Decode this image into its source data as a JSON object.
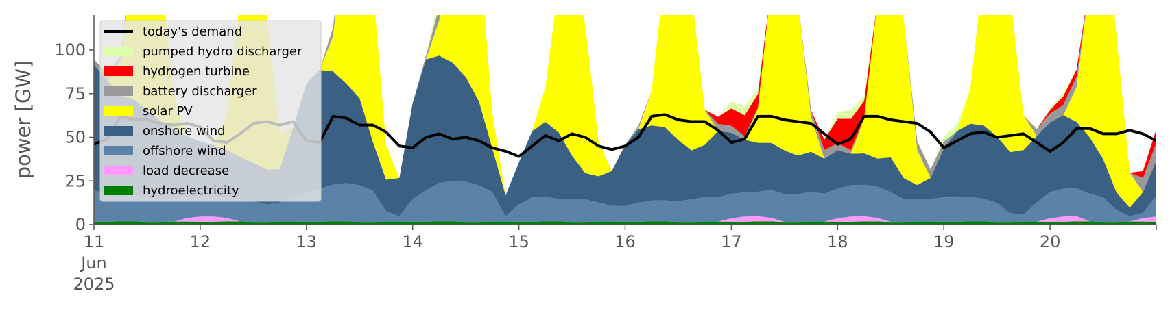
{
  "chart_data": {
    "type": "area",
    "title": "",
    "xlabel": "",
    "ylabel": "power [GW]",
    "ylim": [
      0,
      120
    ],
    "xlim": [
      "2025-06-11T00:00",
      "2025-06-21T00:00"
    ],
    "yticks": [
      "0",
      "25",
      "50",
      "75",
      "100"
    ],
    "xticks": [
      {
        "lines": [
          "11",
          "Jun",
          "2025"
        ]
      },
      {
        "lines": [
          "12"
        ]
      },
      {
        "lines": [
          "13"
        ]
      },
      {
        "lines": [
          "14"
        ]
      },
      {
        "lines": [
          "15"
        ]
      },
      {
        "lines": [
          "16"
        ]
      },
      {
        "lines": [
          "17"
        ]
      },
      {
        "lines": [
          "18"
        ]
      },
      {
        "lines": [
          "19"
        ]
      },
      {
        "lines": [
          "20"
        ]
      }
    ],
    "grid": false,
    "legend_placement": "upper-left",
    "x": [
      "2025-06-11T00:00",
      "2025-06-11T03:00",
      "2025-06-11T06:00",
      "2025-06-11T09:00",
      "2025-06-11T12:00",
      "2025-06-11T15:00",
      "2025-06-11T18:00",
      "2025-06-11T21:00",
      "2025-06-12T00:00",
      "2025-06-12T03:00",
      "2025-06-12T06:00",
      "2025-06-12T09:00",
      "2025-06-12T12:00",
      "2025-06-12T15:00",
      "2025-06-12T18:00",
      "2025-06-12T21:00",
      "2025-06-13T00:00",
      "2025-06-13T03:00",
      "2025-06-13T06:00",
      "2025-06-13T09:00",
      "2025-06-13T12:00",
      "2025-06-13T15:00",
      "2025-06-13T18:00",
      "2025-06-13T21:00",
      "2025-06-14T00:00",
      "2025-06-14T03:00",
      "2025-06-14T06:00",
      "2025-06-14T09:00",
      "2025-06-14T12:00",
      "2025-06-14T15:00",
      "2025-06-14T18:00",
      "2025-06-14T21:00",
      "2025-06-15T00:00",
      "2025-06-15T03:00",
      "2025-06-15T06:00",
      "2025-06-15T09:00",
      "2025-06-15T12:00",
      "2025-06-15T15:00",
      "2025-06-15T18:00",
      "2025-06-15T21:00",
      "2025-06-16T00:00",
      "2025-06-16T03:00",
      "2025-06-16T06:00",
      "2025-06-16T09:00",
      "2025-06-16T12:00",
      "2025-06-16T15:00",
      "2025-06-16T18:00",
      "2025-06-16T21:00",
      "2025-06-17T00:00",
      "2025-06-17T03:00",
      "2025-06-17T06:00",
      "2025-06-17T09:00",
      "2025-06-17T12:00",
      "2025-06-17T15:00",
      "2025-06-17T18:00",
      "2025-06-17T21:00",
      "2025-06-18T00:00",
      "2025-06-18T03:00",
      "2025-06-18T06:00",
      "2025-06-18T09:00",
      "2025-06-18T12:00",
      "2025-06-18T15:00",
      "2025-06-18T18:00",
      "2025-06-18T21:00",
      "2025-06-19T00:00",
      "2025-06-19T03:00",
      "2025-06-19T06:00",
      "2025-06-19T09:00",
      "2025-06-19T12:00",
      "2025-06-19T15:00",
      "2025-06-19T18:00",
      "2025-06-19T21:00",
      "2025-06-20T00:00",
      "2025-06-20T03:00",
      "2025-06-20T06:00",
      "2025-06-20T09:00",
      "2025-06-20T12:00",
      "2025-06-20T15:00",
      "2025-06-20T18:00",
      "2025-06-20T21:00",
      "2025-06-21T00:00"
    ],
    "series": [
      {
        "name": "hydroelectricity",
        "color": "#008000",
        "kind": "area",
        "values": [
          1.6,
          1.6,
          1.8,
          1.8,
          1.5,
          1.5,
          1.7,
          1.7,
          1.6,
          1.6,
          1.8,
          1.8,
          1.5,
          1.5,
          1.7,
          1.7,
          1.6,
          1.6,
          1.8,
          1.8,
          1.5,
          1.5,
          1.7,
          1.7,
          1.6,
          1.6,
          1.8,
          1.8,
          1.5,
          1.5,
          1.7,
          1.7,
          1.6,
          1.6,
          1.8,
          1.8,
          1.5,
          1.5,
          1.7,
          1.7,
          1.6,
          1.6,
          1.8,
          1.8,
          1.5,
          1.5,
          1.7,
          1.7,
          1.6,
          1.6,
          1.8,
          1.8,
          1.5,
          1.5,
          1.7,
          1.7,
          1.6,
          1.6,
          1.8,
          1.8,
          1.5,
          1.5,
          1.7,
          1.7,
          1.6,
          1.6,
          1.8,
          1.8,
          1.5,
          1.5,
          1.7,
          1.7,
          1.6,
          1.6,
          1.8,
          1.8,
          1.5,
          1.5,
          1.7,
          1.7,
          1.6
        ]
      },
      {
        "name": "load decrease",
        "color": "#ff99ff",
        "kind": "area",
        "values": [
          0,
          0,
          0,
          0,
          0,
          0,
          0,
          2,
          3,
          3,
          2,
          0,
          0,
          0,
          0,
          0,
          0,
          0,
          0,
          0,
          0,
          0,
          0,
          0,
          0,
          0,
          0,
          0,
          0,
          0,
          0,
          0,
          0,
          0,
          0,
          0,
          0,
          0,
          0,
          0,
          0,
          0,
          0,
          0,
          0,
          0,
          0,
          0,
          2,
          3,
          3,
          2,
          0,
          0,
          0,
          0,
          2,
          3,
          3,
          2,
          0,
          0,
          0,
          0,
          0,
          0,
          0,
          0,
          0,
          0,
          0,
          0,
          2,
          3,
          3,
          0,
          0,
          0,
          0,
          2,
          3
        ]
      },
      {
        "name": "offshore wind",
        "color": "#5b82a8",
        "kind": "area",
        "values": [
          18,
          16,
          15,
          15,
          14,
          13,
          13,
          12,
          11,
          11,
          12,
          13,
          12,
          10,
          11,
          14,
          17,
          19,
          21,
          22,
          21,
          18,
          6,
          3,
          13,
          18,
          22,
          23,
          23,
          21,
          17,
          3,
          10,
          14,
          14,
          13,
          13,
          13,
          11,
          9,
          9,
          11,
          12,
          12,
          12,
          13,
          14,
          14,
          14,
          14,
          14,
          16,
          16,
          16,
          17,
          16,
          17,
          18,
          18,
          18,
          17,
          13,
          13,
          13,
          14,
          14,
          14,
          13,
          11,
          5,
          4,
          11,
          15,
          16,
          16,
          16,
          14,
          7,
          3,
          3,
          12
        ]
      },
      {
        "name": "onshore wind",
        "color": "#3a6083",
        "kind": "area",
        "values": [
          72,
          65,
          57,
          55,
          50,
          45,
          40,
          35,
          32,
          30,
          27,
          24,
          22,
          20,
          19,
          40,
          62,
          68,
          65,
          57,
          50,
          28,
          18,
          22,
          55,
          75,
          73,
          68,
          60,
          48,
          25,
          12,
          24,
          38,
          43,
          38,
          25,
          15,
          15,
          20,
          35,
          42,
          43,
          42,
          35,
          28,
          30,
          38,
          35,
          30,
          28,
          27,
          25,
          22,
          23,
          20,
          22,
          18,
          18,
          16,
          20,
          12,
          8,
          12,
          28,
          38,
          42,
          42,
          38,
          35,
          37,
          38,
          40,
          42,
          38,
          32,
          22,
          10,
          5,
          12,
          20
        ]
      },
      {
        "name": "solar PV",
        "color": "#ffff00",
        "kind": "area",
        "values": [
          0,
          0,
          20,
          90,
          150,
          90,
          20,
          0,
          0,
          0,
          20,
          90,
          150,
          90,
          20,
          0,
          0,
          0,
          20,
          90,
          150,
          90,
          20,
          0,
          0,
          0,
          20,
          90,
          150,
          90,
          20,
          0,
          0,
          0,
          20,
          85,
          110,
          85,
          20,
          0,
          0,
          0,
          20,
          90,
          150,
          90,
          20,
          0,
          0,
          0,
          20,
          90,
          150,
          90,
          20,
          0,
          0,
          0,
          20,
          90,
          150,
          90,
          20,
          0,
          0,
          0,
          20,
          90,
          150,
          90,
          20,
          0,
          0,
          0,
          20,
          90,
          150,
          90,
          20,
          0,
          0
        ]
      },
      {
        "name": "battery discharger",
        "color": "#999999",
        "kind": "area",
        "values": [
          3,
          4,
          3,
          1,
          0,
          0,
          0,
          0,
          0,
          0,
          0,
          0,
          0,
          0,
          0,
          0,
          0,
          0,
          5,
          5,
          0,
          0,
          0,
          0,
          0,
          2,
          8,
          10,
          0,
          0,
          0,
          0,
          0,
          0,
          0,
          0,
          0,
          0,
          0,
          0,
          0,
          2,
          0,
          0,
          0,
          0,
          0,
          4,
          4,
          2,
          0,
          0,
          0,
          0,
          4,
          5,
          4,
          2,
          0,
          0,
          0,
          0,
          5,
          5,
          4,
          0,
          0,
          0,
          0,
          0,
          0,
          4,
          5,
          6,
          6,
          0,
          0,
          0,
          0,
          8,
          10
        ]
      },
      {
        "name": "hydrogen turbine",
        "color": "#ff0000",
        "kind": "area",
        "values": [
          0,
          0,
          0,
          0,
          0,
          0,
          0,
          0,
          0,
          0,
          0,
          0,
          0,
          0,
          0,
          0,
          0,
          0,
          0,
          0,
          0,
          0,
          0,
          0,
          0,
          0,
          0,
          0,
          0,
          0,
          0,
          0,
          0,
          0,
          0,
          0,
          0,
          0,
          0,
          0,
          0,
          0,
          0,
          0,
          0,
          0,
          0,
          4,
          10,
          12,
          8,
          0,
          0,
          0,
          0,
          6,
          14,
          18,
          10,
          0,
          0,
          0,
          0,
          0,
          0,
          0,
          0,
          0,
          0,
          0,
          0,
          0,
          2,
          5,
          4,
          0,
          0,
          0,
          0,
          4,
          8
        ]
      },
      {
        "name": "pumped hydro discharger",
        "color": "#ddffaa",
        "kind": "area",
        "values": [
          0,
          0,
          0,
          0,
          0,
          0,
          0,
          0,
          0,
          0,
          0,
          0,
          0,
          0,
          0,
          0,
          0,
          0,
          0,
          4,
          0,
          0,
          0,
          0,
          0,
          0,
          6,
          5,
          0,
          0,
          0,
          0,
          0,
          0,
          0,
          0,
          0,
          0,
          0,
          0,
          0,
          0,
          0,
          0,
          0,
          0,
          0,
          0,
          4,
          5,
          3,
          0,
          0,
          0,
          0,
          0,
          4,
          5,
          3,
          0,
          0,
          0,
          0,
          0,
          3,
          4,
          0,
          0,
          0,
          0,
          0,
          0,
          1,
          2,
          0,
          0,
          0,
          0,
          0,
          0,
          0
        ]
      },
      {
        "name": "today's demand",
        "color": "#000000",
        "kind": "line",
        "values": [
          46,
          49,
          62,
          60,
          60,
          58,
          57,
          58,
          56,
          48,
          47,
          52,
          58,
          59,
          57,
          59,
          48,
          47,
          62,
          61,
          57,
          57,
          53,
          45,
          44,
          50,
          52,
          49,
          50,
          48,
          44,
          42,
          39,
          45,
          51,
          48,
          52,
          50,
          45,
          43,
          45,
          50,
          62,
          63,
          60,
          59,
          59,
          54,
          47,
          49,
          62,
          62,
          60,
          59,
          58,
          52,
          46,
          49,
          62,
          62,
          60,
          59,
          58,
          53,
          44,
          48,
          52,
          53,
          50,
          51,
          52,
          47,
          42,
          47,
          55,
          55,
          52,
          52,
          54,
          52,
          48
        ]
      }
    ],
    "legend": [
      "today's demand",
      "pumped hydro discharger",
      "hydrogen turbine",
      "battery discharger",
      "solar PV",
      "onshore wind",
      "offshore wind",
      "load decrease",
      "hydroelectricity"
    ]
  }
}
